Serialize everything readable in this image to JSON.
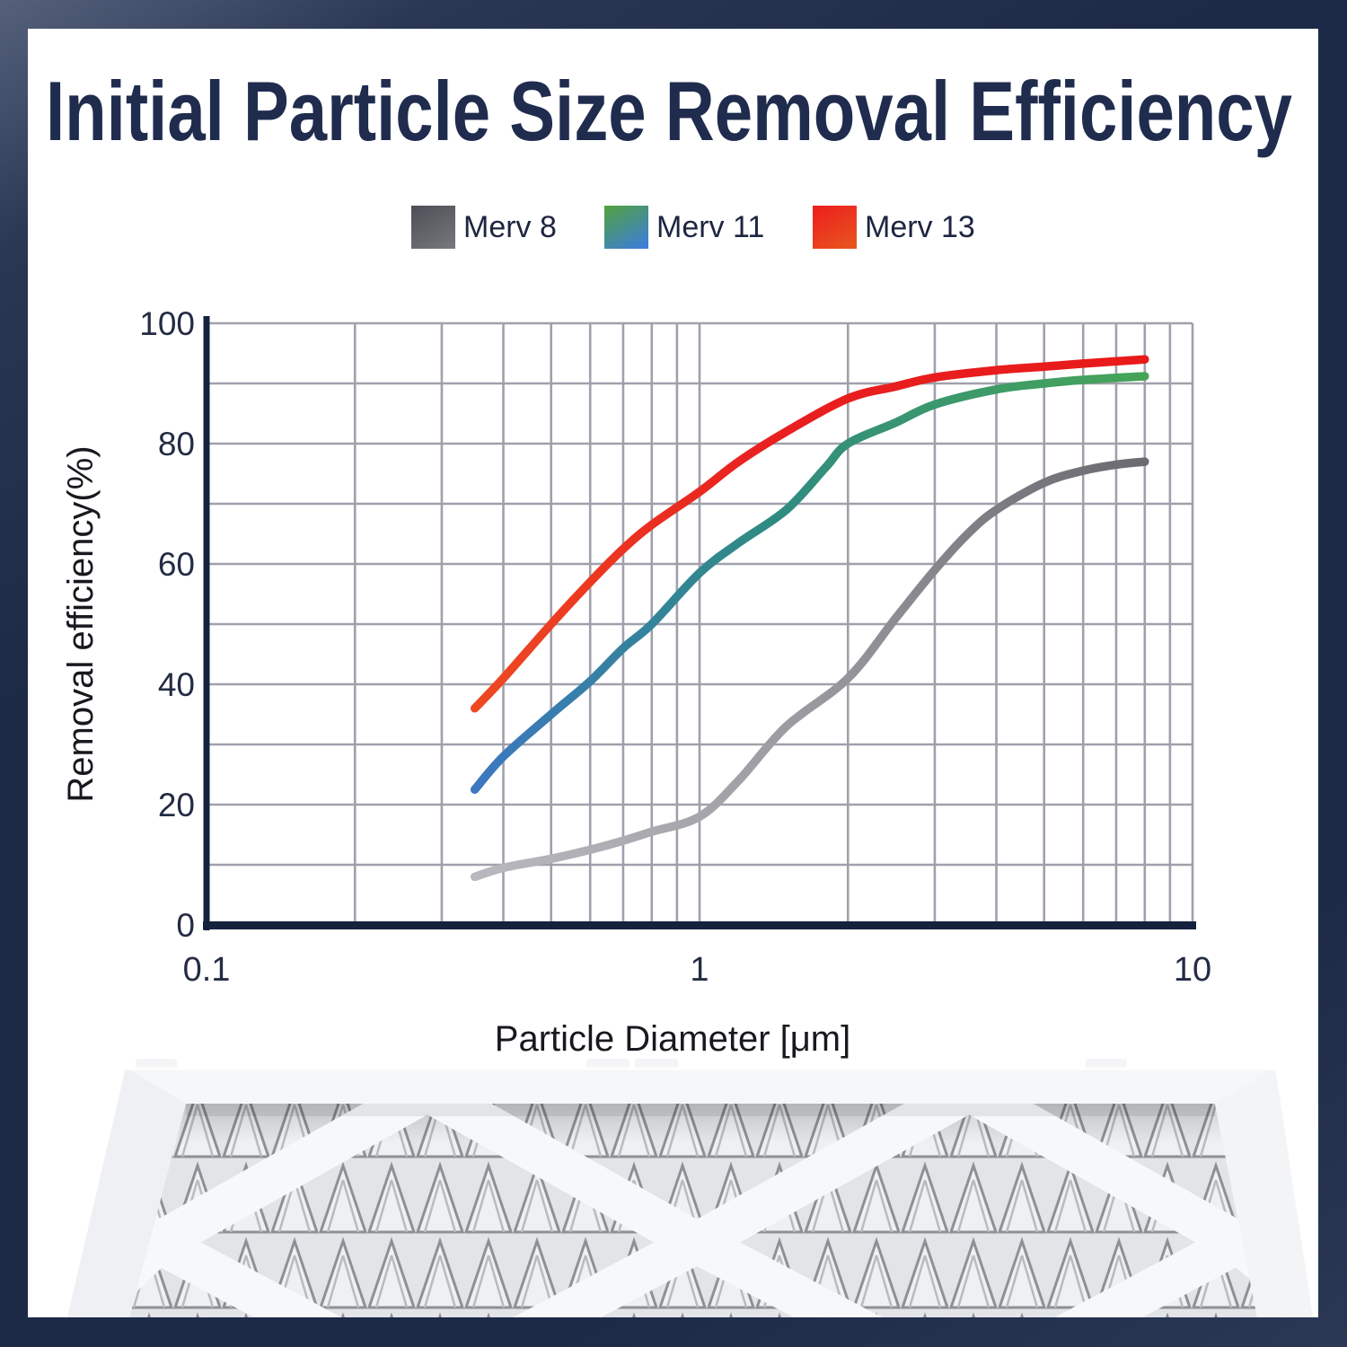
{
  "page": {
    "title": "Initial Particle Size Removal Efficiency"
  },
  "legend": {
    "items": [
      {
        "label": "Merv 8",
        "swatch": [
          "#4e4e56",
          "#77777e"
        ]
      },
      {
        "label": "Merv 11",
        "swatch": [
          "#52a23d",
          "#3b7ce2"
        ]
      },
      {
        "label": "Merv 13",
        "swatch": [
          "#ed1d1d",
          "#e8571f"
        ]
      }
    ]
  },
  "chart_data": {
    "type": "line",
    "xlabel": "Particle Diameter [μm]",
    "ylabel": "Removal efficiency(%)",
    "x_scale": "log",
    "xlim": [
      0.1,
      10
    ],
    "ylim": [
      0,
      100
    ],
    "grid": "on",
    "legend_position": "top",
    "x_major_ticks": [
      {
        "value": 0.1,
        "label": "0.1"
      },
      {
        "value": 1,
        "label": "1"
      },
      {
        "value": 10,
        "label": "10"
      }
    ],
    "x_minor_ticks": [
      0.2,
      0.3,
      0.4,
      0.5,
      0.6,
      0.7,
      0.8,
      0.9,
      1,
      2,
      3,
      4,
      5,
      6,
      7,
      8,
      9,
      10
    ],
    "y_ticks": [
      {
        "value": 0,
        "label": "0"
      },
      {
        "value": 20,
        "label": "20"
      },
      {
        "value": 40,
        "label": "40"
      },
      {
        "value": 60,
        "label": "60"
      },
      {
        "value": 80,
        "label": "80"
      },
      {
        "value": 100,
        "label": "100"
      }
    ],
    "y_grid_step": 10,
    "axis_color": "#15223e",
    "grid_color": "#a0a0ac",
    "tick_label_color": "#242c44",
    "axis_title_color": "#17191f",
    "series": [
      {
        "name": "Merv 8",
        "colors": [
          "#b8b8be",
          "#97979e",
          "#6b6b72"
        ],
        "points": [
          [
            0.35,
            8
          ],
          [
            0.4,
            9.5
          ],
          [
            0.5,
            11
          ],
          [
            0.6,
            12.5
          ],
          [
            0.7,
            14
          ],
          [
            0.8,
            15.5
          ],
          [
            1.0,
            18
          ],
          [
            1.2,
            24
          ],
          [
            1.5,
            33
          ],
          [
            2,
            41
          ],
          [
            2.5,
            51
          ],
          [
            3,
            59
          ],
          [
            3.5,
            65
          ],
          [
            4,
            69
          ],
          [
            5,
            73.5
          ],
          [
            6,
            75.5
          ],
          [
            7,
            76.5
          ],
          [
            8,
            77
          ]
        ]
      },
      {
        "name": "Merv 11",
        "colors": [
          "#3c78c0",
          "#2f8b82",
          "#46a458"
        ],
        "points": [
          [
            0.35,
            22.5
          ],
          [
            0.4,
            28
          ],
          [
            0.5,
            35
          ],
          [
            0.6,
            40.5
          ],
          [
            0.7,
            46
          ],
          [
            0.8,
            50
          ],
          [
            1.0,
            58.5
          ],
          [
            1.2,
            63.5
          ],
          [
            1.5,
            69
          ],
          [
            1.8,
            76
          ],
          [
            2,
            80
          ],
          [
            2.5,
            83.5
          ],
          [
            3,
            86.5
          ],
          [
            4,
            89
          ],
          [
            5,
            90
          ],
          [
            6,
            90.6
          ],
          [
            8,
            91.2
          ]
        ]
      },
      {
        "name": "Merv 13",
        "colors": [
          "#ee4a22",
          "#e92020",
          "#e81a1a"
        ],
        "points": [
          [
            0.35,
            36
          ],
          [
            0.4,
            41
          ],
          [
            0.5,
            50
          ],
          [
            0.6,
            57
          ],
          [
            0.7,
            62.5
          ],
          [
            0.8,
            66.5
          ],
          [
            1.0,
            72
          ],
          [
            1.2,
            77
          ],
          [
            1.5,
            82
          ],
          [
            2,
            87.5
          ],
          [
            2.5,
            89.5
          ],
          [
            3,
            91
          ],
          [
            4,
            92.2
          ],
          [
            5,
            92.8
          ],
          [
            6,
            93.3
          ],
          [
            8,
            94
          ]
        ]
      }
    ]
  },
  "illustration": {
    "name": "pleated-air-filter"
  }
}
